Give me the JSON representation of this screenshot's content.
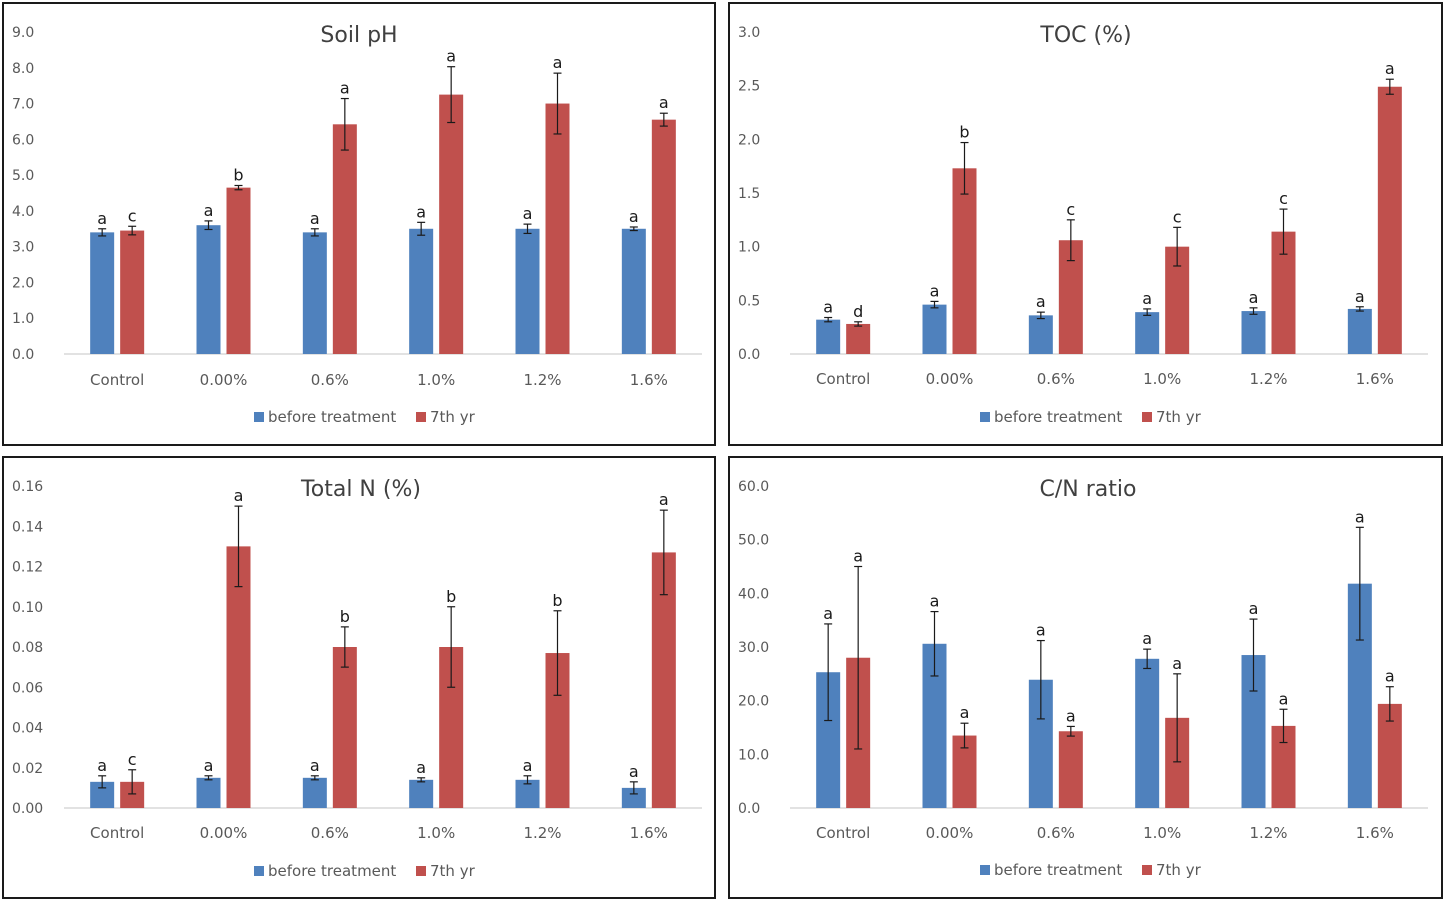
{
  "colors": {
    "before": "#4f81bd",
    "after": "#c0504d",
    "axis": "#d9d9d9",
    "error": "#1a1a1a"
  },
  "legend": {
    "before_label": "before treatment",
    "after_label": "7th yr"
  },
  "chart_data": [
    {
      "type": "bar",
      "title": "Soil pH",
      "categories": [
        "Control",
        "0.00%",
        "0.6%",
        "1.0%",
        "1.2%",
        "1.6%"
      ],
      "ylim": [
        0,
        9
      ],
      "yticks": [
        "0.0",
        "1.0",
        "2.0",
        "3.0",
        "4.0",
        "5.0",
        "6.0",
        "7.0",
        "8.0",
        "9.0"
      ],
      "series": [
        {
          "name": "before treatment",
          "values": [
            3.4,
            3.6,
            3.4,
            3.5,
            3.5,
            3.5
          ],
          "errors": [
            0.1,
            0.12,
            0.1,
            0.18,
            0.13,
            0.05
          ],
          "labels": [
            "a",
            "a",
            "a",
            "a",
            "a",
            "a"
          ]
        },
        {
          "name": "7th yr",
          "values": [
            3.45,
            4.65,
            6.42,
            7.25,
            7.0,
            6.55
          ],
          "errors": [
            0.12,
            0.06,
            0.72,
            0.78,
            0.85,
            0.18
          ],
          "labels": [
            "c",
            "b",
            "a",
            "a",
            "a",
            "a"
          ]
        }
      ]
    },
    {
      "type": "bar",
      "title": "TOC (%)",
      "categories": [
        "Control",
        "0.00%",
        "0.6%",
        "1.0%",
        "1.2%",
        "1.6%"
      ],
      "ylim": [
        0,
        3
      ],
      "yticks": [
        "0.0",
        "0.5",
        "1.0",
        "1.5",
        "2.0",
        "2.5",
        "3.0"
      ],
      "series": [
        {
          "name": "before treatment",
          "values": [
            0.32,
            0.46,
            0.36,
            0.39,
            0.4,
            0.42
          ],
          "errors": [
            0.02,
            0.03,
            0.03,
            0.03,
            0.03,
            0.02
          ],
          "labels": [
            "a",
            "a",
            "a",
            "a",
            "a",
            "a"
          ]
        },
        {
          "name": "7th yr",
          "values": [
            0.28,
            1.73,
            1.06,
            1.0,
            1.14,
            2.49
          ],
          "errors": [
            0.02,
            0.24,
            0.19,
            0.18,
            0.21,
            0.07
          ],
          "labels": [
            "d",
            "b",
            "c",
            "c",
            "c",
            "a"
          ]
        }
      ]
    },
    {
      "type": "bar",
      "title": "Total N (%)",
      "categories": [
        "Control",
        "0.00%",
        "0.6%",
        "1.0%",
        "1.2%",
        "1.6%"
      ],
      "ylim": [
        0,
        0.16
      ],
      "yticks": [
        "0.00",
        "0.02",
        "0.04",
        "0.06",
        "0.08",
        "0.10",
        "0.12",
        "0.14",
        "0.16"
      ],
      "series": [
        {
          "name": "before treatment",
          "values": [
            0.013,
            0.015,
            0.015,
            0.014,
            0.014,
            0.01
          ],
          "errors": [
            0.003,
            0.001,
            0.001,
            0.001,
            0.002,
            0.003
          ],
          "labels": [
            "a",
            "a",
            "a",
            "a",
            "a",
            "a"
          ]
        },
        {
          "name": "7th yr",
          "values": [
            0.013,
            0.13,
            0.08,
            0.08,
            0.077,
            0.127
          ],
          "errors": [
            0.006,
            0.02,
            0.01,
            0.02,
            0.021,
            0.021
          ],
          "labels": [
            "c",
            "a",
            "b",
            "b",
            "b",
            "a"
          ]
        }
      ]
    },
    {
      "type": "bar",
      "title": "C/N ratio",
      "categories": [
        "Control",
        "0.00%",
        "0.6%",
        "1.0%",
        "1.2%",
        "1.6%"
      ],
      "ylim": [
        0,
        60
      ],
      "yticks": [
        "0.0",
        "10.0",
        "20.0",
        "30.0",
        "40.0",
        "50.0",
        "60.0"
      ],
      "series": [
        {
          "name": "before treatment",
          "values": [
            25.3,
            30.6,
            23.9,
            27.8,
            28.5,
            41.8
          ],
          "errors": [
            9.0,
            6.0,
            7.3,
            1.8,
            6.7,
            10.5
          ],
          "labels": [
            "a",
            "a",
            "a",
            "a",
            "a",
            "a"
          ]
        },
        {
          "name": "7th yr",
          "values": [
            28.0,
            13.5,
            14.3,
            16.8,
            15.3,
            19.4
          ],
          "errors": [
            17.0,
            2.3,
            0.9,
            8.2,
            3.1,
            3.2
          ],
          "labels": [
            "a",
            "a",
            "a",
            "a",
            "a",
            "a"
          ]
        }
      ]
    }
  ]
}
